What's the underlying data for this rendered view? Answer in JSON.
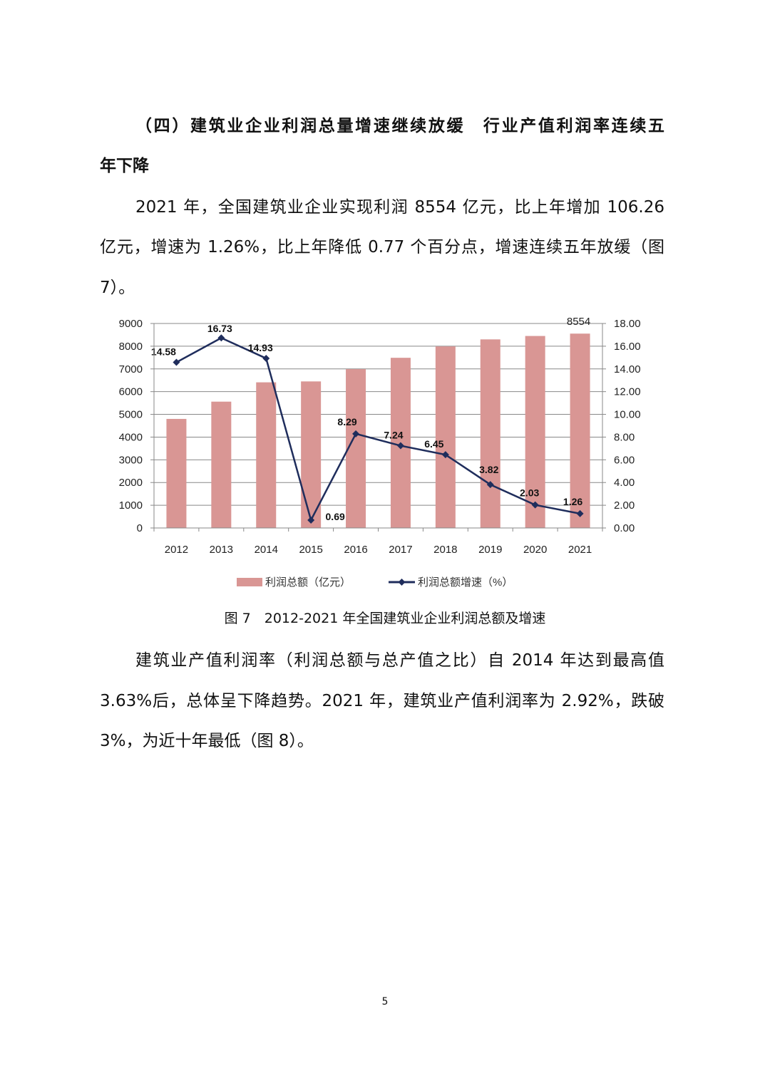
{
  "heading": {
    "lines": [
      "（四）建筑业企业利润总量增速继续放缓　行业产值利润率连续五",
      "年下降"
    ]
  },
  "paragraph1": {
    "lines": [
      "2021 年，全国建筑业企业实现利润 8554 亿元，比上年增加 106.26",
      "亿元，增速为 1.26%，比上年降低 0.77 个百分点，增速连续五年放缓（图",
      "7）。"
    ]
  },
  "figure_caption": "图 7　2012-2021 年全国建筑业企业利润总额及增速",
  "paragraph2": {
    "lines": [
      "建筑业产值利润率（利润总额与总产值之比）自 2014 年达到最高值",
      "3.63%后，总体呈下降趋势。2021 年，建筑业产值利润率为 2.92%，跌破",
      "3%，为近十年最低（图 8）。"
    ]
  },
  "page_number": "5",
  "chart_data": {
    "type": "bar+line",
    "categories": [
      "2012",
      "2013",
      "2014",
      "2015",
      "2016",
      "2017",
      "2018",
      "2019",
      "2020",
      "2021"
    ],
    "series": [
      {
        "name": "利润总额（亿元）",
        "type": "bar",
        "axis": "left",
        "color": "#d99694",
        "values": [
          4800,
          5560,
          6410,
          6450,
          6990,
          7490,
          7990,
          8300,
          8450,
          8554
        ],
        "data_labels": {
          "9": "8554"
        }
      },
      {
        "name": "利润总额增速（%）",
        "type": "line",
        "axis": "right",
        "color": "#1f2d5c",
        "marker": "diamond",
        "values": [
          14.58,
          16.73,
          14.93,
          0.69,
          8.29,
          7.24,
          6.45,
          3.82,
          2.03,
          1.26
        ],
        "data_labels": [
          "14.58",
          "16.73",
          "14.93",
          "0.69",
          "8.29",
          "7.24",
          "6.45",
          "3.82",
          "2.03",
          "1.26"
        ]
      }
    ],
    "y_left": {
      "range": [
        0,
        9000
      ],
      "ticks": [
        "0",
        "1000",
        "2000",
        "3000",
        "4000",
        "5000",
        "6000",
        "7000",
        "8000",
        "9000"
      ]
    },
    "y_right": {
      "range": [
        0,
        18
      ],
      "ticks": [
        "0.00",
        "2.00",
        "4.00",
        "6.00",
        "8.00",
        "10.00",
        "12.00",
        "14.00",
        "16.00",
        "18.00"
      ]
    },
    "grid": true,
    "legend_position": "bottom"
  }
}
